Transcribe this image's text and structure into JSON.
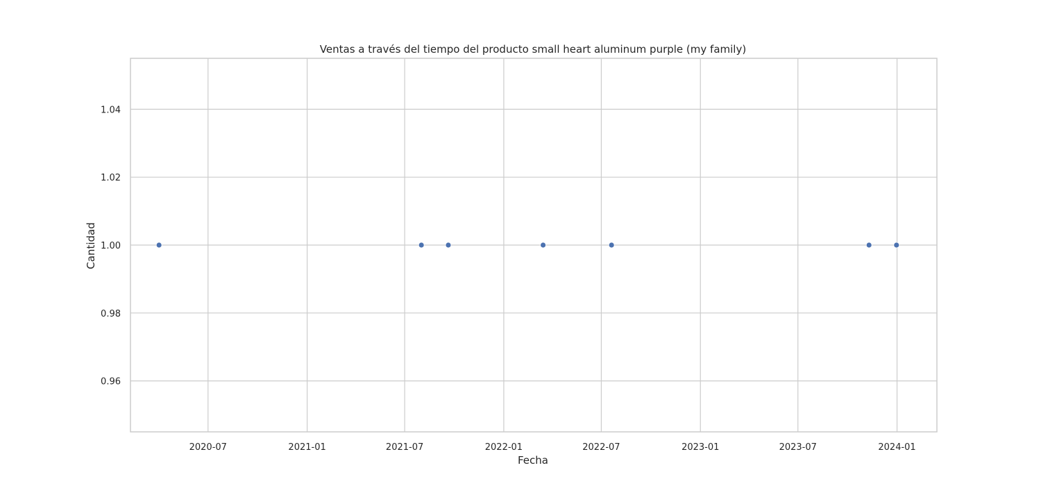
{
  "chart_data": {
    "type": "scatter",
    "title": "Ventas a través del tiempo del producto small heart aluminum purple (my family)",
    "xlabel": "Fecha",
    "ylabel": "Cantidad",
    "x_axis_type": "date",
    "xlim": [
      "2020-02-08",
      "2024-03-15"
    ],
    "ylim": [
      0.945,
      1.055
    ],
    "x_ticks": [
      "2020-07",
      "2021-01",
      "2021-07",
      "2022-01",
      "2022-07",
      "2023-01",
      "2023-07",
      "2024-01"
    ],
    "y_ticks": [
      "0.96",
      "0.98",
      "1.00",
      "1.02",
      "1.04"
    ],
    "grid": true,
    "legend": "none",
    "series": [
      {
        "color": "#4c72b0",
        "points": [
          {
            "x": "2020-04-01",
            "y": 1.0
          },
          {
            "x": "2021-08-01",
            "y": 1.0
          },
          {
            "x": "2021-09-20",
            "y": 1.0
          },
          {
            "x": "2022-03-15",
            "y": 1.0
          },
          {
            "x": "2022-07-20",
            "y": 1.0
          },
          {
            "x": "2023-11-10",
            "y": 1.0
          },
          {
            "x": "2023-12-31",
            "y": 1.0
          }
        ]
      }
    ]
  }
}
